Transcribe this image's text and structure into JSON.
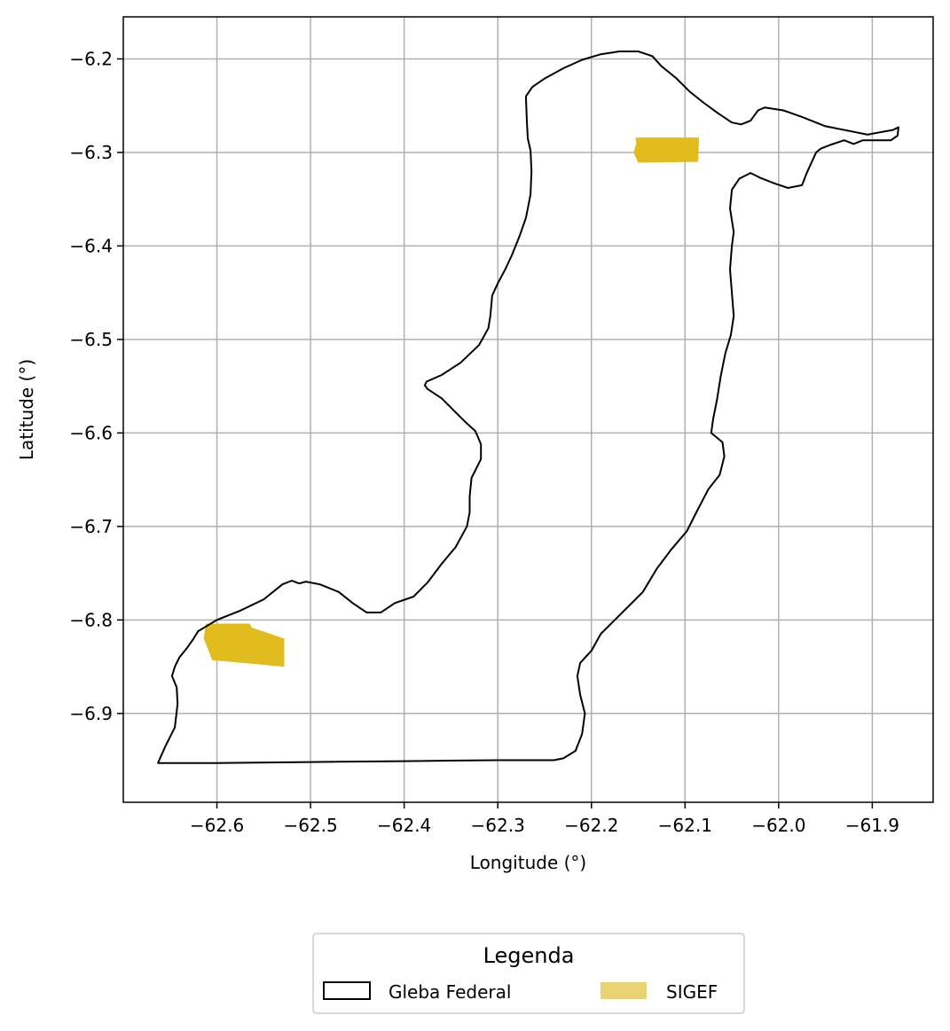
{
  "chart_data": {
    "type": "map",
    "xlabel": "Longitude (°)",
    "ylabel": "Latitude (°)",
    "xlim": [
      -62.7,
      -61.835
    ],
    "ylim": [
      -6.995,
      -6.155
    ],
    "xticks": [
      -62.6,
      -62.5,
      -62.4,
      -62.3,
      -62.2,
      -62.1,
      -62.0,
      -61.9
    ],
    "xtick_labels": [
      "−62.6",
      "−62.5",
      "−62.4",
      "−62.3",
      "−62.2",
      "−62.1",
      "−62.0",
      "−61.9"
    ],
    "yticks": [
      -6.2,
      -6.3,
      -6.4,
      -6.5,
      -6.6,
      -6.7,
      -6.8,
      -6.9
    ],
    "ytick_labels": [
      "−6.2",
      "−6.3",
      "−6.4",
      "−6.5",
      "−6.6",
      "−6.7",
      "−6.8",
      "−6.9"
    ],
    "grid": true,
    "legend": {
      "title": "Legenda",
      "placement": "bottom-center",
      "items": [
        {
          "label": "Gleba Federal",
          "style": "outline",
          "color": "#000000"
        },
        {
          "label": "SIGEF",
          "style": "fill",
          "color": "#e8d375"
        }
      ]
    },
    "layers": [
      {
        "name": "Gleba Federal",
        "type": "polygon-outline",
        "color": "#000000",
        "coordinates": [
          [
            -62.663,
            -6.953
          ],
          [
            -62.655,
            -6.935
          ],
          [
            -62.645,
            -6.915
          ],
          [
            -62.642,
            -6.89
          ],
          [
            -62.643,
            -6.872
          ],
          [
            -62.648,
            -6.86
          ],
          [
            -62.645,
            -6.85
          ],
          [
            -62.64,
            -6.84
          ],
          [
            -62.632,
            -6.83
          ],
          [
            -62.625,
            -6.82
          ],
          [
            -62.62,
            -6.812
          ],
          [
            -62.6,
            -6.8
          ],
          [
            -62.575,
            -6.79
          ],
          [
            -62.55,
            -6.778
          ],
          [
            -62.53,
            -6.762
          ],
          [
            -62.52,
            -6.758
          ],
          [
            -62.512,
            -6.761
          ],
          [
            -62.505,
            -6.759
          ],
          [
            -62.49,
            -6.762
          ],
          [
            -62.47,
            -6.77
          ],
          [
            -62.455,
            -6.782
          ],
          [
            -62.44,
            -6.792
          ],
          [
            -62.425,
            -6.792
          ],
          [
            -62.41,
            -6.782
          ],
          [
            -62.39,
            -6.775
          ],
          [
            -62.375,
            -6.76
          ],
          [
            -62.36,
            -6.74
          ],
          [
            -62.345,
            -6.722
          ],
          [
            -62.333,
            -6.7
          ],
          [
            -62.33,
            -6.685
          ],
          [
            -62.33,
            -6.668
          ],
          [
            -62.328,
            -6.648
          ],
          [
            -62.322,
            -6.636
          ],
          [
            -62.318,
            -6.628
          ],
          [
            -62.318,
            -6.612
          ],
          [
            -62.324,
            -6.598
          ],
          [
            -62.335,
            -6.588
          ],
          [
            -62.345,
            -6.578
          ],
          [
            -62.36,
            -6.563
          ],
          [
            -62.375,
            -6.553
          ],
          [
            -62.378,
            -6.549
          ],
          [
            -62.376,
            -6.545
          ],
          [
            -62.36,
            -6.538
          ],
          [
            -62.34,
            -6.525
          ],
          [
            -62.32,
            -6.506
          ],
          [
            -62.31,
            -6.488
          ],
          [
            -62.308,
            -6.475
          ],
          [
            -62.306,
            -6.453
          ],
          [
            -62.3,
            -6.44
          ],
          [
            -62.292,
            -6.425
          ],
          [
            -62.285,
            -6.41
          ],
          [
            -62.277,
            -6.39
          ],
          [
            -62.27,
            -6.37
          ],
          [
            -62.265,
            -6.345
          ],
          [
            -62.264,
            -6.32
          ],
          [
            -62.265,
            -6.298
          ],
          [
            -62.268,
            -6.285
          ],
          [
            -62.269,
            -6.265
          ],
          [
            -62.27,
            -6.24
          ],
          [
            -62.263,
            -6.23
          ],
          [
            -62.25,
            -6.221
          ],
          [
            -62.23,
            -6.21
          ],
          [
            -62.21,
            -6.201
          ],
          [
            -62.19,
            -6.195
          ],
          [
            -62.17,
            -6.192
          ],
          [
            -62.15,
            -6.192
          ],
          [
            -62.135,
            -6.197
          ],
          [
            -62.125,
            -6.208
          ],
          [
            -62.11,
            -6.22
          ],
          [
            -62.095,
            -6.235
          ],
          [
            -62.08,
            -6.247
          ],
          [
            -62.065,
            -6.258
          ],
          [
            -62.05,
            -6.268
          ],
          [
            -62.04,
            -6.27
          ],
          [
            -62.03,
            -6.266
          ],
          [
            -62.022,
            -6.255
          ],
          [
            -62.015,
            -6.252
          ],
          [
            -61.995,
            -6.255
          ],
          [
            -61.975,
            -6.262
          ],
          [
            -61.95,
            -6.272
          ],
          [
            -61.92,
            -6.278
          ],
          [
            -61.905,
            -6.281
          ],
          [
            -61.895,
            -6.279
          ],
          [
            -61.878,
            -6.276
          ],
          [
            -61.872,
            -6.273
          ],
          [
            -61.873,
            -6.282
          ],
          [
            -61.88,
            -6.287
          ],
          [
            -61.893,
            -6.287
          ],
          [
            -61.91,
            -6.287
          ],
          [
            -61.92,
            -6.291
          ],
          [
            -61.93,
            -6.287
          ],
          [
            -61.945,
            -6.292
          ],
          [
            -61.955,
            -6.296
          ],
          [
            -61.96,
            -6.3
          ],
          [
            -61.97,
            -6.322
          ],
          [
            -61.975,
            -6.335
          ],
          [
            -61.99,
            -6.338
          ],
          [
            -62.005,
            -6.333
          ],
          [
            -62.02,
            -6.327
          ],
          [
            -62.03,
            -6.322
          ],
          [
            -62.042,
            -6.328
          ],
          [
            -62.05,
            -6.34
          ],
          [
            -62.052,
            -6.36
          ],
          [
            -62.048,
            -6.385
          ],
          [
            -62.05,
            -6.4
          ],
          [
            -62.052,
            -6.425
          ],
          [
            -62.05,
            -6.45
          ],
          [
            -62.048,
            -6.475
          ],
          [
            -62.051,
            -6.495
          ],
          [
            -62.057,
            -6.515
          ],
          [
            -62.062,
            -6.54
          ],
          [
            -62.066,
            -6.565
          ],
          [
            -62.07,
            -6.585
          ],
          [
            -62.072,
            -6.6
          ],
          [
            -62.06,
            -6.61
          ],
          [
            -62.058,
            -6.625
          ],
          [
            -62.063,
            -6.645
          ],
          [
            -62.075,
            -6.66
          ],
          [
            -62.088,
            -6.685
          ],
          [
            -62.098,
            -6.705
          ],
          [
            -62.115,
            -6.725
          ],
          [
            -62.13,
            -6.745
          ],
          [
            -62.145,
            -6.77
          ],
          [
            -62.16,
            -6.785
          ],
          [
            -62.175,
            -6.8
          ],
          [
            -62.19,
            -6.815
          ],
          [
            -62.2,
            -6.833
          ],
          [
            -62.212,
            -6.846
          ],
          [
            -62.215,
            -6.86
          ],
          [
            -62.212,
            -6.88
          ],
          [
            -62.207,
            -6.9
          ],
          [
            -62.21,
            -6.922
          ],
          [
            -62.217,
            -6.94
          ],
          [
            -62.23,
            -6.948
          ],
          [
            -62.24,
            -6.95
          ],
          [
            -62.3,
            -6.95
          ],
          [
            -62.4,
            -6.951
          ],
          [
            -62.5,
            -6.952
          ],
          [
            -62.6,
            -6.953
          ],
          [
            -62.663,
            -6.953
          ]
        ]
      },
      {
        "name": "SIGEF",
        "type": "polygon-fill",
        "color": "#e0bc1f",
        "polygons": [
          [
            [
              -62.612,
              -6.804
            ],
            [
              -62.565,
              -6.804
            ],
            [
              -62.563,
              -6.808
            ],
            [
              -62.528,
              -6.82
            ],
            [
              -62.528,
              -6.85
            ],
            [
              -62.605,
              -6.843
            ],
            [
              -62.614,
              -6.82
            ]
          ],
          [
            [
              -62.153,
              -6.284
            ],
            [
              -62.085,
              -6.284
            ],
            [
              -62.086,
              -6.31
            ],
            [
              -62.15,
              -6.311
            ],
            [
              -62.155,
              -6.3
            ],
            [
              -62.152,
              -6.29
            ]
          ]
        ]
      }
    ]
  }
}
